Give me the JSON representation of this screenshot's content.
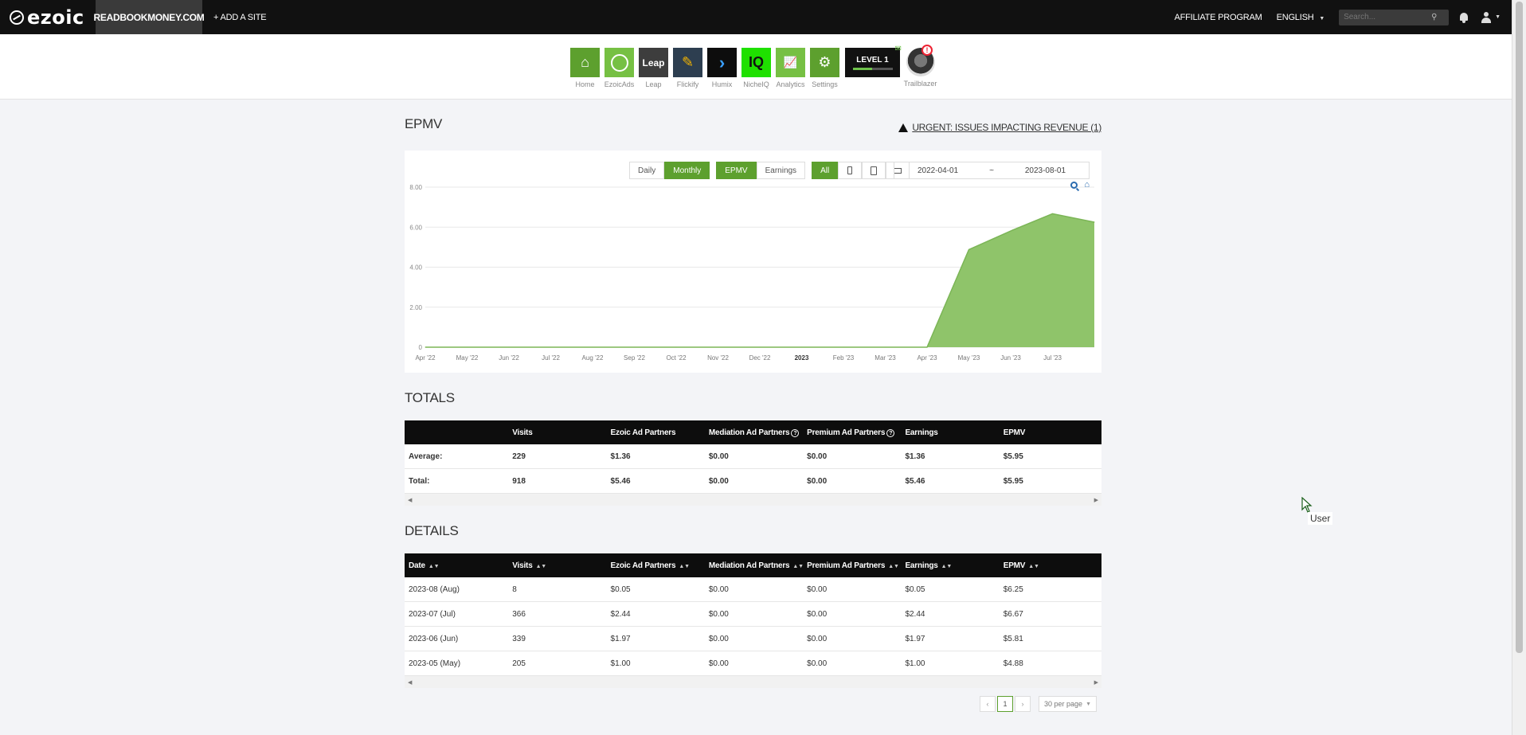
{
  "topbar": {
    "logo": "ezoic",
    "site": "READBOOKMONEY.COM",
    "add_site": "+ ADD A SITE",
    "affiliate": "AFFILIATE PROGRAM",
    "language": "ENGLISH",
    "search_placeholder": "Search..."
  },
  "apps": [
    {
      "label": "Home",
      "color": "#5da02e",
      "glyph": "⌂"
    },
    {
      "label": "EzoicAds",
      "color": "#76c043",
      "glyph": "e"
    },
    {
      "label": "Leap",
      "color": "#3d3d3d",
      "glyph": "Leap"
    },
    {
      "label": "Flickify",
      "color": "#2d3e50",
      "glyph": "♜"
    },
    {
      "label": "Humix",
      "color": "#0d0d0d",
      "glyph": "›"
    },
    {
      "label": "NicheIQ",
      "color": "#1fe000",
      "glyph": "IQ"
    },
    {
      "label": "Analytics",
      "color": "#76c043",
      "glyph": "▲"
    },
    {
      "label": "Settings",
      "color": "#5da02e",
      "glyph": "⚙"
    }
  ],
  "level": {
    "label": "LEVEL 1",
    "progress": 0.48
  },
  "trailblazer": {
    "label": "Trailblazer",
    "badge": "!"
  },
  "page": {
    "title": "EPMV",
    "urgent": "URGENT: ISSUES IMPACTING REVENUE (1)"
  },
  "controls": {
    "daily": "Daily",
    "monthly": "Monthly",
    "epmv": "EPMV",
    "earnings": "Earnings",
    "all": "All",
    "date_from": "2022-04-01",
    "date_sep": "~",
    "date_to": "2023-08-01"
  },
  "chart_data": {
    "type": "area",
    "x": [
      "Apr '22",
      "May '22",
      "Jun '22",
      "Jul '22",
      "Aug '22",
      "Sep '22",
      "Oct '22",
      "Nov '22",
      "Dec '22",
      "2023",
      "Feb '23",
      "Mar '23",
      "Apr '23",
      "May '23",
      "Jun '23",
      "Jul '23",
      "Aug '23"
    ],
    "x_tick_labels": [
      "Apr '22",
      "May '22",
      "Jun '22",
      "Jul '22",
      "Aug '22",
      "Sep '22",
      "Oct '22",
      "Nov '22",
      "Dec '22",
      "2023",
      "Feb '23",
      "Mar '23",
      "Apr '23",
      "May '23",
      "Jun '23",
      "Jul '23"
    ],
    "values": [
      0,
      0,
      0,
      0,
      0,
      0,
      0,
      0,
      0,
      0,
      0,
      0,
      0,
      4.88,
      5.81,
      6.67,
      6.25
    ],
    "ylim": [
      0,
      8
    ],
    "y_ticks": [
      "0",
      "2.00",
      "4.00",
      "6.00",
      "8.00"
    ],
    "y_tick_values": [
      0,
      2,
      4,
      6,
      8
    ],
    "color": "#8fc46a",
    "grid": true,
    "title": "",
    "xlabel": "",
    "ylabel": ""
  },
  "totals": {
    "title": "TOTALS",
    "headers": [
      "",
      "Visits",
      "Ezoic Ad Partners",
      "Mediation Ad Partners",
      "Premium Ad Partners",
      "Earnings",
      "EPMV"
    ],
    "rows": [
      [
        "Average:",
        "229",
        "$1.36",
        "$0.00",
        "$0.00",
        "$1.36",
        "$5.95"
      ],
      [
        "Total:",
        "918",
        "$5.46",
        "$0.00",
        "$0.00",
        "$5.46",
        "$5.95"
      ]
    ]
  },
  "details": {
    "title": "DETAILS",
    "headers": [
      "Date",
      "Visits",
      "Ezoic Ad Partners",
      "Mediation Ad Partners",
      "Premium Ad Partners",
      "Earnings",
      "EPMV"
    ],
    "rows": [
      [
        "2023-08 (Aug)",
        "8",
        "$0.05",
        "$0.00",
        "$0.00",
        "$0.05",
        "$6.25"
      ],
      [
        "2023-07 (Jul)",
        "366",
        "$2.44",
        "$0.00",
        "$0.00",
        "$2.44",
        "$6.67"
      ],
      [
        "2023-06 (Jun)",
        "339",
        "$1.97",
        "$0.00",
        "$0.00",
        "$1.97",
        "$5.81"
      ],
      [
        "2023-05 (May)",
        "205",
        "$1.00",
        "$0.00",
        "$0.00",
        "$1.00",
        "$4.88"
      ]
    ]
  },
  "pager": {
    "prev": "‹",
    "current": "1",
    "next": "›",
    "per_page": "30 per page"
  },
  "cursor_tooltip": "User"
}
